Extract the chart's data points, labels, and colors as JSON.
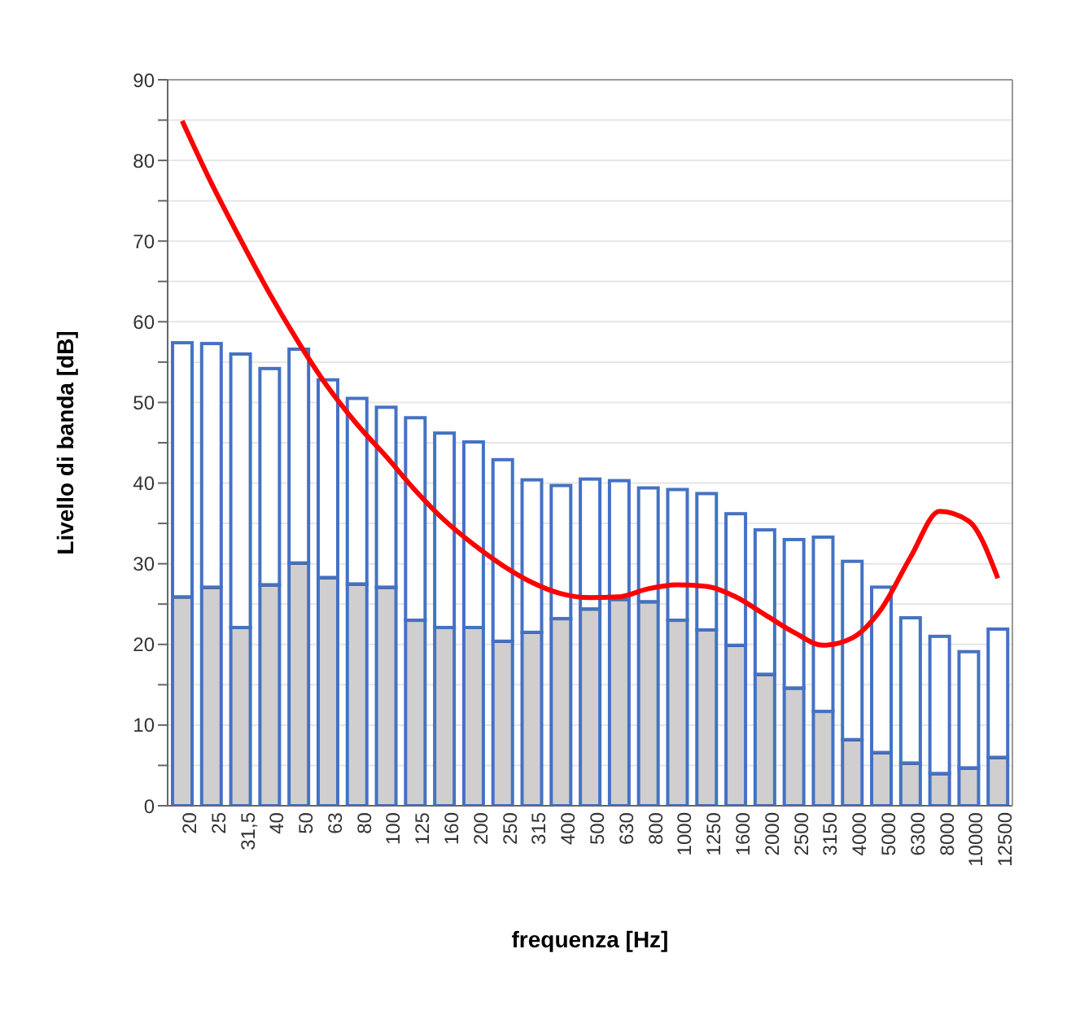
{
  "chart_data": {
    "type": "bar",
    "stacked": true,
    "xlabel": "frequenza [Hz]",
    "ylabel": "Livello di banda [dB]",
    "categories": [
      "20",
      "25",
      "31,5",
      "40",
      "50",
      "63",
      "80",
      "100",
      "125",
      "160",
      "200",
      "250",
      "315",
      "400",
      "500",
      "630",
      "800",
      "1000",
      "1250",
      "1600",
      "2000",
      "2500",
      "3150",
      "4000",
      "5000",
      "6300",
      "8000",
      "10000",
      "12500"
    ],
    "series": [
      {
        "color": "#d0cece",
        "values": [
          25.9,
          27.1,
          22.1,
          27.4,
          30.1,
          28.3,
          27.5,
          27.1,
          23.0,
          22.1,
          22.1,
          20.4,
          21.5,
          23.2,
          24.4,
          25.6,
          25.3,
          23.0,
          21.8,
          19.9,
          16.3,
          14.6,
          11.7,
          8.2,
          6.6,
          5.3,
          4.0,
          4.7,
          6.0
        ]
      },
      {
        "color": "#ffffff",
        "values": [
          31.5,
          30.2,
          33.9,
          26.8,
          26.5,
          24.5,
          23.0,
          22.3,
          25.1,
          24.1,
          23.0,
          22.5,
          18.9,
          16.5,
          16.1,
          14.7,
          14.1,
          16.2,
          16.9,
          16.3,
          17.9,
          18.4,
          21.6,
          22.1,
          20.5,
          18.0,
          17.0,
          14.4,
          15.9
        ]
      },
      {
        "type": "line",
        "color": "#ff0000",
        "values": [
          84.9,
          77.2,
          70.2,
          63.5,
          57.4,
          51.9,
          47.3,
          43.3,
          39.1,
          35.4,
          32.4,
          29.8,
          27.7,
          26.3,
          25.8,
          25.9,
          26.9,
          27.4,
          27.2,
          25.9,
          23.7,
          21.5,
          19.9,
          20.8,
          24.4,
          30.8,
          36.5,
          35.3,
          28.2
        ]
      }
    ],
    "ylim": [
      0,
      90
    ],
    "yticks": [
      0,
      {
        "value": 5,
        "label": null
      },
      10,
      {
        "value": 15,
        "label": null
      },
      20,
      {
        "value": 25,
        "label": null
      },
      30,
      {
        "value": 35,
        "label": null
      },
      40,
      {
        "value": 45,
        "label": null
      },
      50,
      {
        "value": 55,
        "label": null
      },
      60,
      {
        "value": 65,
        "label": null
      },
      70,
      {
        "value": 75,
        "label": null
      },
      80,
      {
        "value": 85,
        "label": null
      },
      90
    ],
    "grid": "y",
    "legend": false,
    "marker": "none",
    "line_style": "solid"
  }
}
